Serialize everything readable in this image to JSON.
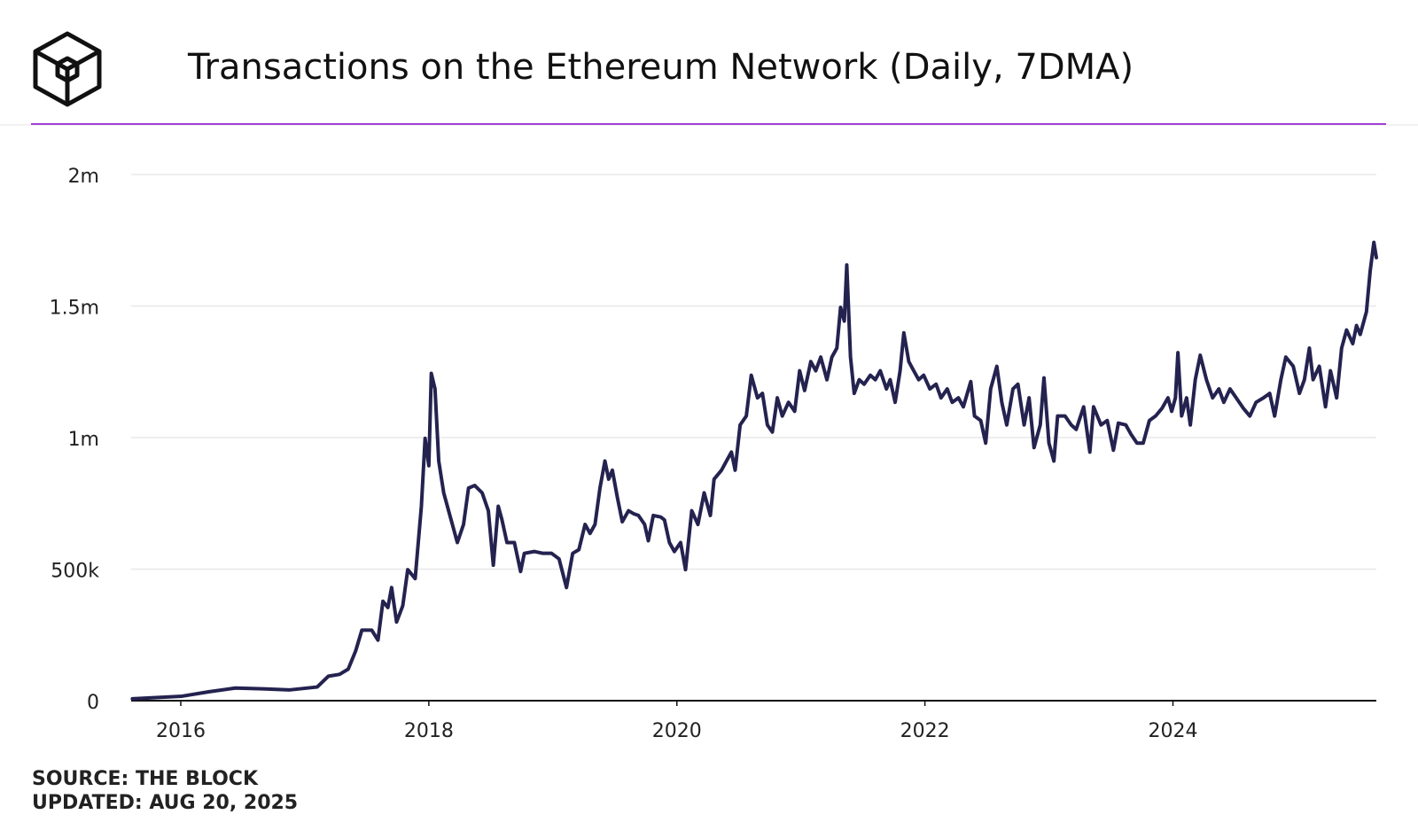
{
  "chart_data": {
    "type": "line",
    "title": "Transactions on the Ethereum Network (Daily, 7DMA)",
    "source": "SOURCE: THE BLOCK",
    "updated": "UPDATED: AUG 20, 2025",
    "xlim": [
      2015.6,
      2025.64
    ],
    "xticks": [
      2016,
      2018,
      2020,
      2022,
      2024
    ],
    "ylim": [
      0,
      2000000
    ],
    "yticks": [
      0,
      {
        "value": 500000,
        "label": "500k"
      },
      {
        "value": 1000000,
        "label": "1m"
      },
      {
        "value": 1500000,
        "label": "1.5m"
      },
      {
        "value": 2000000,
        "label": "2m"
      }
    ],
    "grid": true,
    "series": [
      {
        "name": "Transactions",
        "color": "#24224f",
        "x": [
          2015.61,
          2016.01,
          2016.23,
          2016.44,
          2016.66,
          2016.88,
          2017.1,
          2017.19,
          2017.28,
          2017.35,
          2017.41,
          2017.46,
          2017.54,
          2017.59,
          2017.63,
          2017.67,
          2017.7,
          2017.74,
          2017.79,
          2017.83,
          2017.89,
          2017.94,
          2017.97,
          2018.0,
          2018.02,
          2018.05,
          2018.08,
          2018.12,
          2018.17,
          2018.23,
          2018.28,
          2018.32,
          2018.37,
          2018.43,
          2018.48,
          2018.52,
          2018.56,
          2018.59,
          2018.63,
          2018.69,
          2018.74,
          2018.77,
          2018.85,
          2018.92,
          2018.99,
          2019.05,
          2019.11,
          2019.16,
          2019.21,
          2019.26,
          2019.3,
          2019.34,
          2019.38,
          2019.42,
          2019.45,
          2019.48,
          2019.52,
          2019.56,
          2019.61,
          2019.65,
          2019.69,
          2019.74,
          2019.77,
          2019.81,
          2019.87,
          2019.9,
          2019.94,
          2019.98,
          2020.03,
          2020.07,
          2020.12,
          2020.17,
          2020.22,
          2020.27,
          2020.3,
          2020.36,
          2020.4,
          2020.44,
          2020.47,
          2020.51,
          2020.56,
          2020.6,
          2020.65,
          2020.69,
          2020.73,
          2020.77,
          2020.81,
          2020.85,
          2020.9,
          2020.95,
          2020.99,
          2021.03,
          2021.08,
          2021.12,
          2021.16,
          2021.21,
          2021.25,
          2021.29,
          2021.32,
          2021.35,
          2021.37,
          2021.4,
          2021.43,
          2021.47,
          2021.51,
          2021.56,
          2021.6,
          2021.64,
          2021.69,
          2021.72,
          2021.76,
          2021.8,
          2021.83,
          2021.87,
          2021.91,
          2021.95,
          2021.99,
          2022.04,
          2022.09,
          2022.13,
          2022.18,
          2022.22,
          2022.27,
          2022.31,
          2022.37,
          2022.4,
          2022.45,
          2022.49,
          2022.53,
          2022.58,
          2022.62,
          2022.66,
          2022.71,
          2022.75,
          2022.8,
          2022.84,
          2022.88,
          2022.93,
          2022.96,
          2023.0,
          2023.04,
          2023.07,
          2023.13,
          2023.18,
          2023.22,
          2023.28,
          2023.33,
          2023.36,
          2023.42,
          2023.47,
          2023.52,
          2023.56,
          2023.62,
          2023.66,
          2023.71,
          2023.76,
          2023.81,
          2023.86,
          2023.91,
          2023.96,
          2023.99,
          2024.02,
          2024.04,
          2024.07,
          2024.11,
          2024.14,
          2024.18,
          2024.22,
          2024.27,
          2024.32,
          2024.37,
          2024.41,
          2024.46,
          2024.51,
          2024.57,
          2024.62,
          2024.67,
          2024.73,
          2024.78,
          2024.82,
          2024.87,
          2024.91,
          2024.97,
          2025.02,
          2025.06,
          2025.1,
          2025.13,
          2025.18,
          2025.23,
          2025.27,
          2025.32,
          2025.36,
          2025.4,
          2025.45,
          2025.48,
          2025.51,
          2025.56,
          2025.59,
          2025.62,
          2025.64
        ],
        "values": [
          7000,
          17000,
          34000,
          48000,
          45000,
          41000,
          52000,
          93000,
          100000,
          120000,
          189000,
          268000,
          268000,
          230000,
          378000,
          354000,
          430000,
          299000,
          361000,
          498000,
          464000,
          739000,
          997000,
          893000,
          1244000,
          1185000,
          911000,
          790000,
          704000,
          601000,
          670000,
          808000,
          818000,
          790000,
          722000,
          515000,
          739000,
          687000,
          601000,
          601000,
          491000,
          560000,
          567000,
          560000,
          560000,
          539000,
          430000,
          560000,
          574000,
          670000,
          636000,
          670000,
          808000,
          911000,
          842000,
          876000,
          773000,
          680000,
          722000,
          711000,
          704000,
          670000,
          608000,
          704000,
          698000,
          687000,
          601000,
          567000,
          601000,
          498000,
          722000,
          670000,
          790000,
          704000,
          842000,
          876000,
          911000,
          945000,
          876000,
          1048000,
          1082000,
          1237000,
          1151000,
          1168000,
          1048000,
          1021000,
          1151000,
          1082000,
          1134000,
          1100000,
          1254000,
          1179000,
          1289000,
          1254000,
          1306000,
          1220000,
          1306000,
          1340000,
          1495000,
          1443000,
          1656000,
          1306000,
          1168000,
          1220000,
          1203000,
          1237000,
          1220000,
          1254000,
          1185000,
          1220000,
          1134000,
          1254000,
          1398000,
          1289000,
          1254000,
          1220000,
          1237000,
          1185000,
          1203000,
          1151000,
          1185000,
          1134000,
          1151000,
          1117000,
          1213000,
          1082000,
          1065000,
          979000,
          1185000,
          1271000,
          1134000,
          1048000,
          1185000,
          1203000,
          1048000,
          1151000,
          962000,
          1048000,
          1227000,
          979000,
          911000,
          1082000,
          1082000,
          1048000,
          1031000,
          1117000,
          945000,
          1117000,
          1048000,
          1065000,
          952000,
          1055000,
          1048000,
          1014000,
          979000,
          979000,
          1065000,
          1082000,
          1110000,
          1151000,
          1100000,
          1151000,
          1323000,
          1082000,
          1151000,
          1048000,
          1220000,
          1313000,
          1220000,
          1151000,
          1185000,
          1134000,
          1185000,
          1151000,
          1110000,
          1082000,
          1134000,
          1151000,
          1168000,
          1082000,
          1220000,
          1306000,
          1271000,
          1168000,
          1220000,
          1340000,
          1220000,
          1271000,
          1117000,
          1254000,
          1151000,
          1340000,
          1409000,
          1357000,
          1426000,
          1392000,
          1478000,
          1632000,
          1742000,
          1684000
        ]
      }
    ]
  }
}
